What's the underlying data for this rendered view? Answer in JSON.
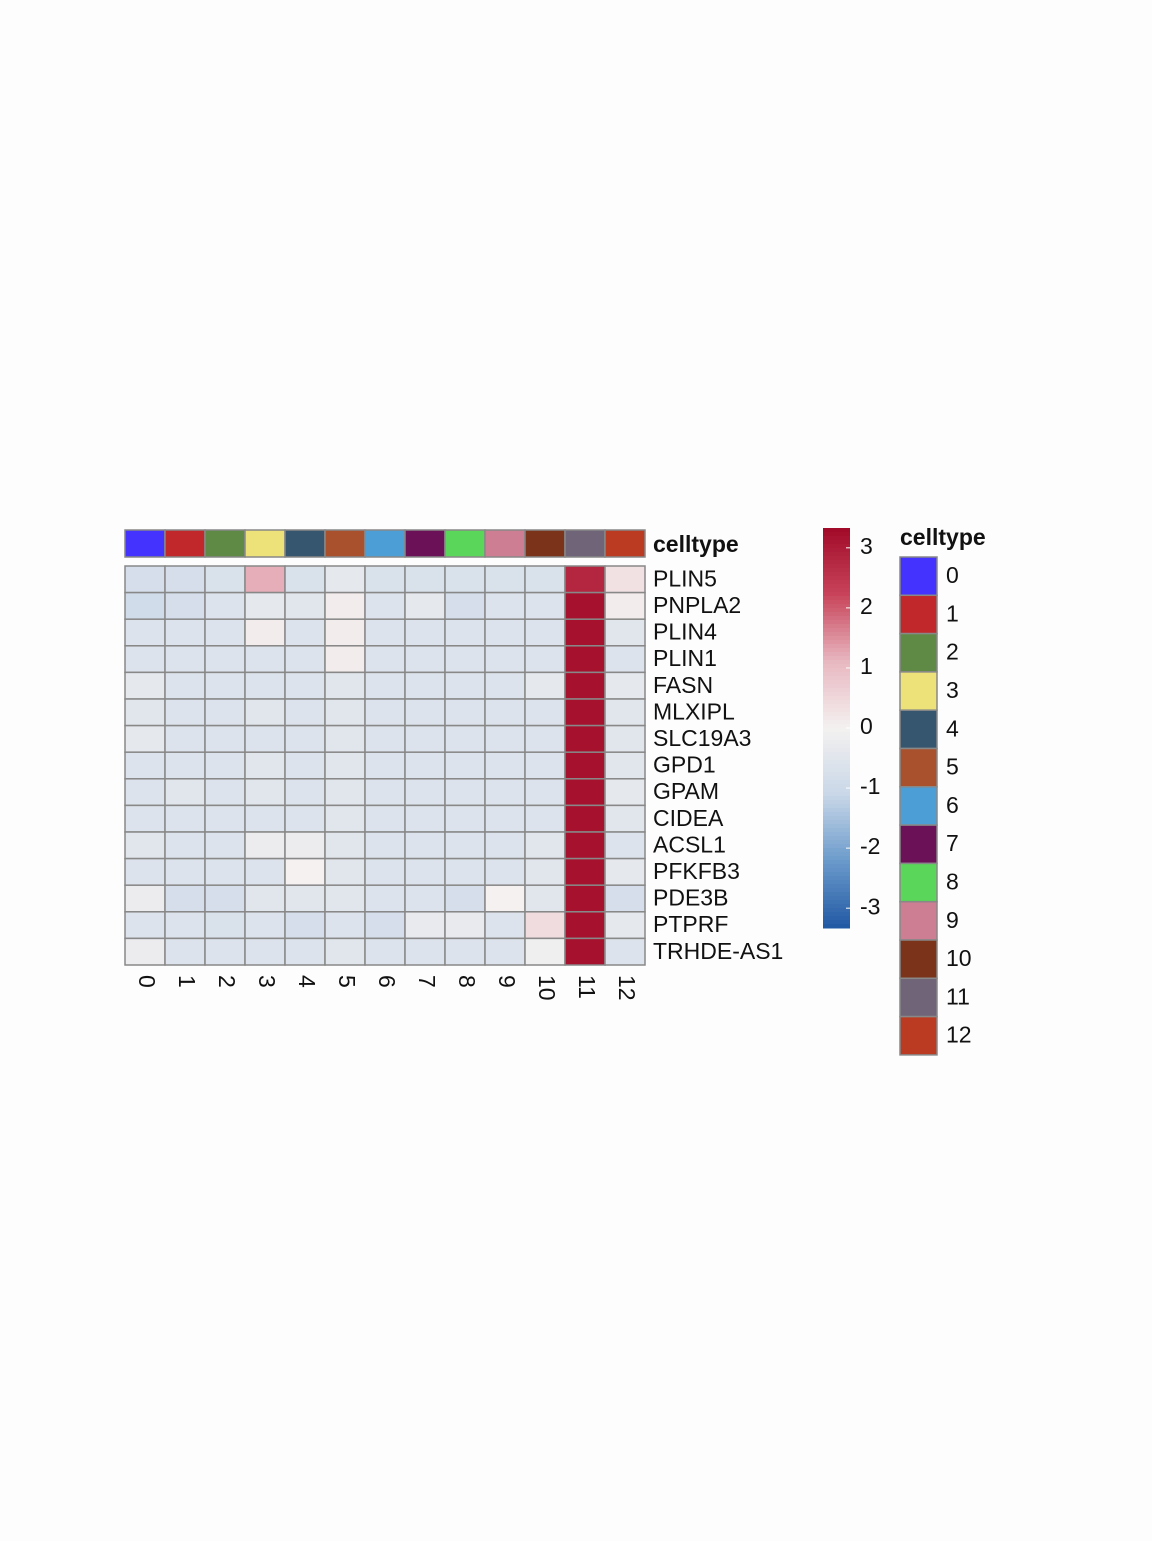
{
  "chart_data": {
    "type": "heatmap",
    "categories": [
      "0",
      "1",
      "2",
      "3",
      "4",
      "5",
      "6",
      "7",
      "8",
      "9",
      "10",
      "11",
      "12"
    ],
    "rows": [
      "PLIN5",
      "PNPLA2",
      "PLIN4",
      "PLIN1",
      "FASN",
      "MLXIPL",
      "SLC19A3",
      "GPD1",
      "GPAM",
      "CIDEA",
      "ACSL1",
      "PFKFB3",
      "PDE3B",
      "PTPRF",
      "TRHDE-AS1"
    ],
    "values": [
      [
        -0.8,
        -0.8,
        -0.7,
        1.2,
        -0.7,
        -0.4,
        -0.7,
        -0.7,
        -0.7,
        -0.7,
        -0.7,
        2.8,
        0.3
      ],
      [
        -0.9,
        -0.8,
        -0.6,
        -0.4,
        -0.5,
        0.1,
        -0.6,
        -0.4,
        -0.8,
        -0.6,
        -0.6,
        3.2,
        0.1
      ],
      [
        -0.6,
        -0.6,
        -0.6,
        0.1,
        -0.6,
        0.1,
        -0.6,
        -0.6,
        -0.6,
        -0.6,
        -0.6,
        3.2,
        -0.5
      ],
      [
        -0.6,
        -0.6,
        -0.6,
        -0.6,
        -0.6,
        0.1,
        -0.6,
        -0.6,
        -0.6,
        -0.6,
        -0.6,
        3.2,
        -0.6
      ],
      [
        -0.4,
        -0.6,
        -0.6,
        -0.6,
        -0.6,
        -0.5,
        -0.6,
        -0.6,
        -0.6,
        -0.6,
        -0.4,
        3.2,
        -0.4
      ],
      [
        -0.5,
        -0.6,
        -0.6,
        -0.5,
        -0.6,
        -0.5,
        -0.6,
        -0.6,
        -0.6,
        -0.6,
        -0.6,
        3.2,
        -0.5
      ],
      [
        -0.4,
        -0.6,
        -0.6,
        -0.6,
        -0.6,
        -0.5,
        -0.6,
        -0.6,
        -0.6,
        -0.6,
        -0.6,
        3.2,
        -0.5
      ],
      [
        -0.6,
        -0.6,
        -0.6,
        -0.5,
        -0.6,
        -0.5,
        -0.6,
        -0.6,
        -0.6,
        -0.6,
        -0.6,
        3.2,
        -0.5
      ],
      [
        -0.6,
        -0.5,
        -0.6,
        -0.5,
        -0.6,
        -0.5,
        -0.6,
        -0.6,
        -0.6,
        -0.6,
        -0.6,
        3.2,
        -0.4
      ],
      [
        -0.6,
        -0.6,
        -0.6,
        -0.6,
        -0.6,
        -0.5,
        -0.6,
        -0.6,
        -0.6,
        -0.6,
        -0.6,
        3.2,
        -0.5
      ],
      [
        -0.5,
        -0.6,
        -0.6,
        -0.2,
        -0.2,
        -0.5,
        -0.6,
        -0.6,
        -0.6,
        -0.6,
        -0.5,
        3.2,
        -0.6
      ],
      [
        -0.6,
        -0.6,
        -0.6,
        -0.6,
        0.0,
        -0.5,
        -0.6,
        -0.6,
        -0.6,
        -0.6,
        -0.5,
        3.2,
        -0.4
      ],
      [
        -0.2,
        -0.8,
        -0.8,
        -0.5,
        -0.5,
        -0.5,
        -0.6,
        -0.6,
        -0.8,
        0.0,
        -0.5,
        3.2,
        -0.8
      ],
      [
        -0.6,
        -0.6,
        -0.7,
        -0.6,
        -0.8,
        -0.6,
        -0.8,
        -0.3,
        -0.3,
        -0.6,
        0.4,
        3.2,
        -0.4
      ],
      [
        -0.2,
        -0.6,
        -0.6,
        -0.6,
        -0.6,
        -0.5,
        -0.6,
        -0.6,
        -0.6,
        -0.6,
        -0.1,
        3.2,
        -0.6
      ]
    ],
    "zlim": [
      -3.33,
      3.33
    ],
    "zticks": [
      -3,
      -2,
      -1,
      0,
      1,
      2,
      3
    ],
    "colorscale": [
      "#2158a3",
      "#6a9acb",
      "#c9d7e8",
      "#f4f1f0",
      "#e8b7c0",
      "#c8445a",
      "#a10a28"
    ],
    "annotation": {
      "name": "celltype",
      "colors": [
        "#4433ff",
        "#c0282b",
        "#5e8a45",
        "#ede27a",
        "#36566f",
        "#a9502d",
        "#4c9ed6",
        "#6b1157",
        "#5ad65a",
        "#cd7e92",
        "#7b3319",
        "#6f6478",
        "#bb3b22"
      ]
    }
  }
}
